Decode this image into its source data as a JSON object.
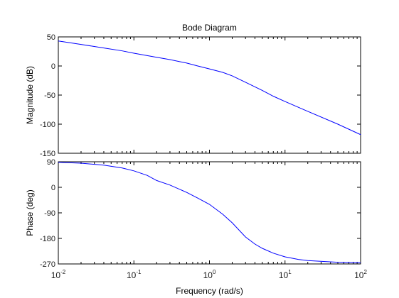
{
  "chart_data": {
    "type": "line",
    "title": "Bode Diagram",
    "xlabel": "Frequency  (rad/s)",
    "xscale": "log",
    "xlim": [
      0.01,
      100
    ],
    "x_ticks": [
      {
        "value": 0.01,
        "base": "10",
        "exp": "-2"
      },
      {
        "value": 0.1,
        "base": "10",
        "exp": "-1"
      },
      {
        "value": 1,
        "base": "10",
        "exp": "0"
      },
      {
        "value": 10,
        "base": "10",
        "exp": "1"
      },
      {
        "value": 100,
        "base": "10",
        "exp": "2"
      }
    ],
    "grid": false,
    "line_color": "#0000ff",
    "panels": [
      {
        "name": "magnitude",
        "ylabel": "Magnitude (dB)",
        "ylim": [
          -150,
          50
        ],
        "yticks": [
          50,
          0,
          -50,
          -100,
          -150
        ],
        "x": [
          0.01,
          0.02,
          0.04,
          0.07,
          0.1,
          0.2,
          0.3,
          0.5,
          0.7,
          1,
          1.5,
          2,
          3,
          5,
          7,
          10,
          20,
          50,
          100
        ],
        "y": [
          43,
          37,
          31,
          26,
          22,
          15,
          11,
          5,
          0,
          -5,
          -11,
          -17,
          -28,
          -42,
          -52,
          -61,
          -78,
          -100,
          -118
        ]
      },
      {
        "name": "phase",
        "ylabel": "Phase (deg)",
        "ylim": [
          -270,
          90
        ],
        "yticks": [
          90,
          0,
          -90,
          -180,
          -270
        ],
        "x": [
          0.01,
          0.02,
          0.04,
          0.07,
          0.1,
          0.15,
          0.2,
          0.3,
          0.5,
          0.7,
          1,
          1.5,
          2,
          3,
          4,
          5,
          7,
          10,
          15,
          20,
          50,
          100
        ],
        "y": [
          88,
          85,
          78,
          68,
          58,
          42,
          24,
          8,
          -18,
          -38,
          -60,
          -95,
          -125,
          -175,
          -200,
          -215,
          -232,
          -245,
          -254,
          -258,
          -264,
          -266
        ]
      }
    ]
  }
}
